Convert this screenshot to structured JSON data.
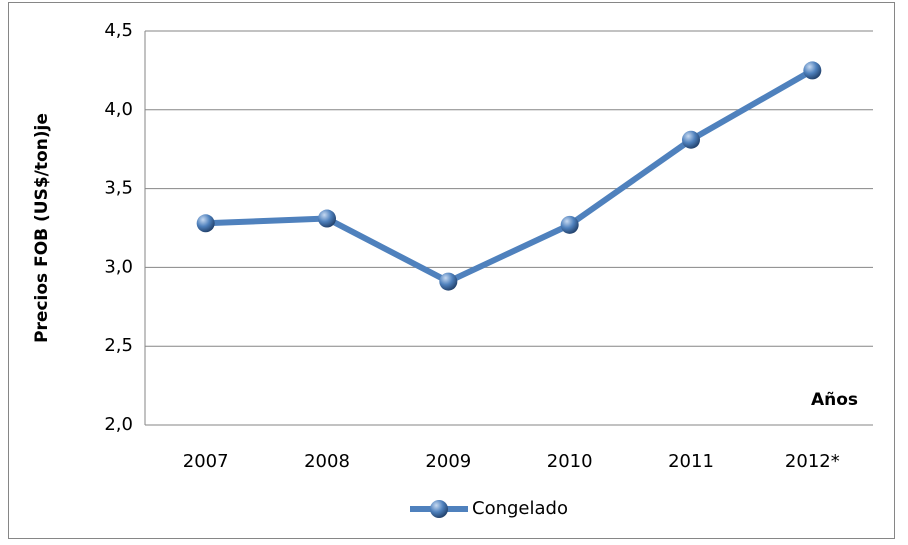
{
  "chart_data": {
    "type": "line",
    "y_axis_label": "Precios FOB (US$/ton)je",
    "annotation": "Años",
    "categories": [
      "2007",
      "2008",
      "2009",
      "2010",
      "2011",
      "2012*"
    ],
    "series": [
      {
        "name": "Congelado",
        "color": "#4f81bd",
        "values": [
          3.28,
          3.31,
          2.91,
          3.27,
          3.81,
          4.25
        ]
      }
    ],
    "ylim": [
      2.0,
      4.5
    ],
    "yticks": [
      {
        "value": 2.0,
        "label": "2,0"
      },
      {
        "value": 2.5,
        "label": "2,5"
      },
      {
        "value": 3.0,
        "label": "3,0"
      },
      {
        "value": 3.5,
        "label": "3,5"
      },
      {
        "value": 4.0,
        "label": "4,0"
      },
      {
        "value": 4.5,
        "label": "4,5"
      }
    ],
    "grid": true,
    "legend": "bottom"
  }
}
